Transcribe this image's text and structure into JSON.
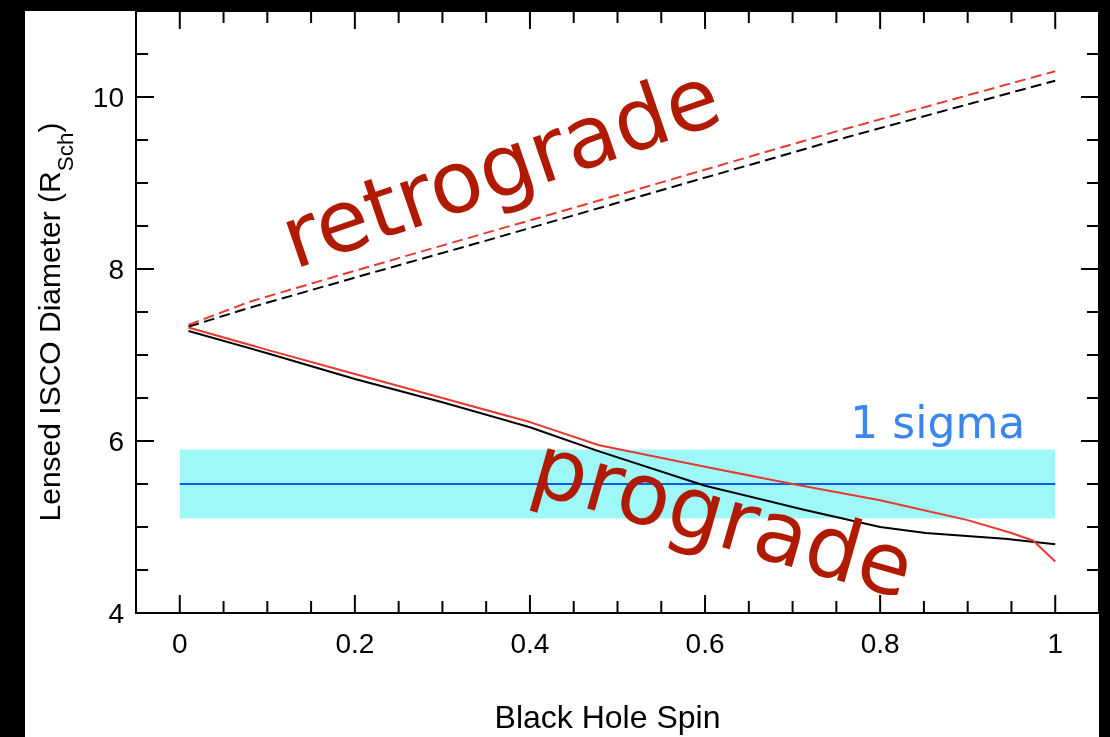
{
  "chart_data": {
    "type": "line",
    "xlabel": "Black Hole Spin",
    "ylabel": "Lensed ISCO Diameter (R$_{Sch}$)",
    "xlim": [
      -0.05,
      1.05
    ],
    "ylim": [
      4,
      11
    ],
    "xticks": [
      0,
      {
        "value": 0.05,
        "label": null
      },
      {
        "value": 0.1,
        "label": null
      },
      {
        "value": 0.15,
        "label": null
      },
      0.2,
      {
        "value": 0.25,
        "label": null
      },
      {
        "value": 0.3,
        "label": null
      },
      {
        "value": 0.35,
        "label": null
      },
      0.4,
      {
        "value": 0.45,
        "label": null
      },
      {
        "value": 0.5,
        "label": null
      },
      {
        "value": 0.55,
        "label": null
      },
      0.6,
      {
        "value": 0.65,
        "label": null
      },
      {
        "value": 0.7,
        "label": null
      },
      {
        "value": 0.75,
        "label": null
      },
      0.8,
      {
        "value": 0.85,
        "label": null
      },
      {
        "value": 0.9,
        "label": null
      },
      {
        "value": 0.95,
        "label": null
      },
      1
    ],
    "yticks": [
      4,
      {
        "value": 4.5,
        "label": null
      },
      {
        "value": 5,
        "label": null
      },
      {
        "value": 5.5,
        "label": null
      },
      6,
      {
        "value": 6.5,
        "label": null
      },
      {
        "value": 7,
        "label": null
      },
      {
        "value": 7.5,
        "label": null
      },
      8,
      {
        "value": 8.5,
        "label": null
      },
      {
        "value": 9,
        "label": null
      },
      {
        "value": 9.5,
        "label": null
      },
      10,
      {
        "value": 10.5,
        "label": null
      }
    ],
    "grid": false,
    "bands": [
      {
        "axis": "y",
        "from": 5.1,
        "to": 5.9,
        "label": "1 sigma",
        "color": "#9ff8f8"
      }
    ],
    "ref_lines": [
      {
        "axis": "y",
        "value": 5.5,
        "color": "#0a5ee8"
      }
    ],
    "series": [
      {
        "color": "#e8392f",
        "line_style": "dashed",
        "x": [
          0.01,
          0.08,
          0.2,
          0.35,
          0.514,
          0.75,
          1
        ],
        "values": [
          7.35,
          7.62,
          7.98,
          8.42,
          8.9,
          9.6,
          10.3
        ]
      },
      {
        "color": "#000000",
        "line_style": "dashed",
        "x": [
          0.01,
          0.08,
          0.2,
          0.35,
          0.5,
          0.75,
          1
        ],
        "values": [
          7.33,
          7.55,
          7.9,
          8.33,
          8.77,
          9.5,
          10.19
        ]
      },
      {
        "color": "#000000",
        "line_style": "solid",
        "x": [
          0.01,
          0.1,
          0.2,
          0.3,
          0.4,
          0.479,
          0.6,
          0.713,
          0.8,
          0.852,
          0.946,
          1
        ],
        "values": [
          7.28,
          7.02,
          6.72,
          6.45,
          6.16,
          5.88,
          5.48,
          5.2,
          5.0,
          4.93,
          4.86,
          4.8
        ]
      },
      {
        "color": "#e8392f",
        "line_style": "solid",
        "x": [
          0.01,
          0.1,
          0.2,
          0.3,
          0.4,
          0.479,
          0.6,
          0.7,
          0.8,
          0.9,
          0.95,
          0.975,
          1
        ],
        "values": [
          7.32,
          7.06,
          6.78,
          6.5,
          6.22,
          5.95,
          5.7,
          5.5,
          5.31,
          5.08,
          4.93,
          4.84,
          4.6
        ]
      }
    ],
    "annotations": [
      "retrograde",
      "prograde"
    ]
  }
}
